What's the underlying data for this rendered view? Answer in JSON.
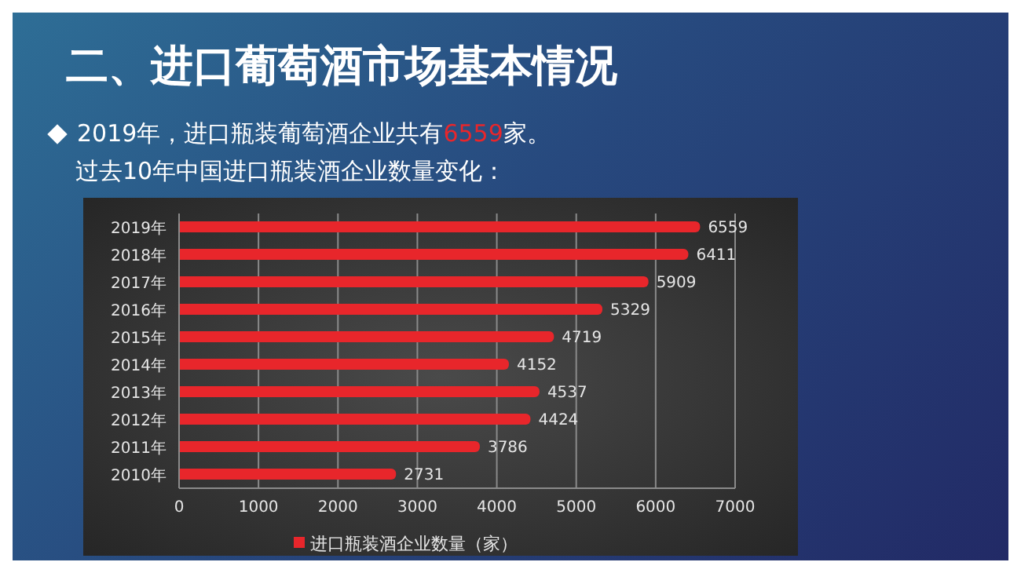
{
  "chart_data": {
    "type": "bar",
    "orientation": "horizontal",
    "title": "二、进口葡萄酒市场基本情况",
    "subtitle": "2019年，进口瓶装葡萄酒企业共有6559家。",
    "annotations": [
      "过去10年中国进口瓶装酒企业数量变化："
    ],
    "categories": [
      "2019年",
      "2018年",
      "2017年",
      "2016年",
      "2015年",
      "2014年",
      "2013年",
      "2012年",
      "2011年",
      "2010年"
    ],
    "series": [
      {
        "name": "进口瓶装酒企业数量（家）",
        "color": "#e8262b",
        "values": [
          6559,
          6411,
          5909,
          5329,
          4719,
          4152,
          4537,
          4424,
          3786,
          2731
        ]
      }
    ],
    "xlim": [
      0,
      7000
    ],
    "xticks": [
      0,
      1000,
      2000,
      3000,
      4000,
      5000,
      6000,
      7000
    ],
    "grid": "x",
    "legend": "bottom",
    "data_labels": true
  }
}
